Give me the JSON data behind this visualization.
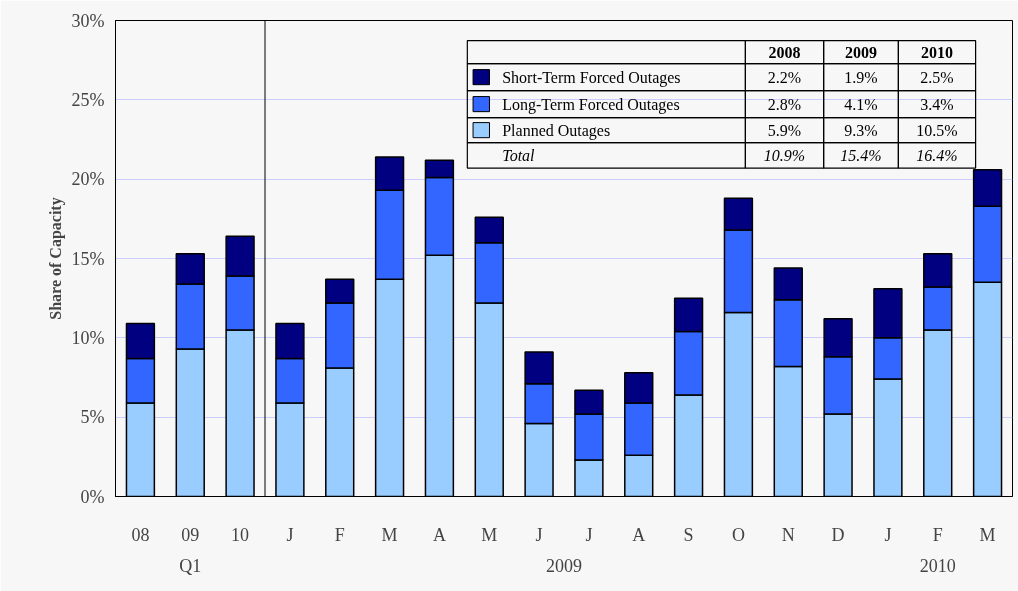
{
  "chart_data": {
    "type": "bar",
    "stacked": true,
    "ylabel": "Share of Capacity",
    "categories": [
      "08",
      "09",
      "10",
      "J",
      "F",
      "M",
      "A",
      "M",
      "J",
      "J",
      "A",
      "S",
      "O",
      "N",
      "D",
      "J",
      "F",
      "M"
    ],
    "series": [
      {
        "name": "Planned Outages",
        "color": "#99ccff",
        "values": [
          5.9,
          9.3,
          10.5,
          5.9,
          8.1,
          13.7,
          15.2,
          12.2,
          4.6,
          2.3,
          2.6,
          6.4,
          11.6,
          8.2,
          5.2,
          7.4,
          10.5,
          13.5
        ]
      },
      {
        "name": "Long-Term Forced Outages",
        "color": "#3366ff",
        "values": [
          2.8,
          4.1,
          3.4,
          2.8,
          4.1,
          5.6,
          4.9,
          3.8,
          2.5,
          2.9,
          3.3,
          4.0,
          5.2,
          4.2,
          3.6,
          2.6,
          2.7,
          4.8
        ]
      },
      {
        "name": "Short-Term Forced Outages",
        "color": "#000080",
        "values": [
          2.2,
          1.9,
          2.5,
          2.2,
          1.5,
          2.1,
          1.1,
          1.6,
          2.0,
          1.5,
          1.9,
          2.1,
          2.0,
          2.0,
          2.4,
          3.1,
          2.1,
          2.3
        ]
      }
    ],
    "annotations": [
      "2008",
      "2009",
      "2010",
      "2.2%",
      "1.9%",
      "2.5%",
      "2.8%",
      "4.1%",
      "3.4%",
      "5.9%",
      "9.3%",
      "10.5%",
      "Total",
      "10.9%",
      "15.4%",
      "16.4%",
      "Q1",
      "2009",
      "2010"
    ],
    "ylim": [
      0,
      30
    ],
    "yticks": [
      {
        "value": 0,
        "label": "0%"
      },
      {
        "value": 5,
        "label": "5%"
      },
      {
        "value": 10,
        "label": "10%"
      },
      {
        "value": 15,
        "label": "15%"
      },
      {
        "value": 20,
        "label": "20%"
      },
      {
        "value": 25,
        "label": "25%"
      },
      {
        "value": 30,
        "label": "30%"
      }
    ],
    "grid": "y",
    "legend": "top right"
  }
}
